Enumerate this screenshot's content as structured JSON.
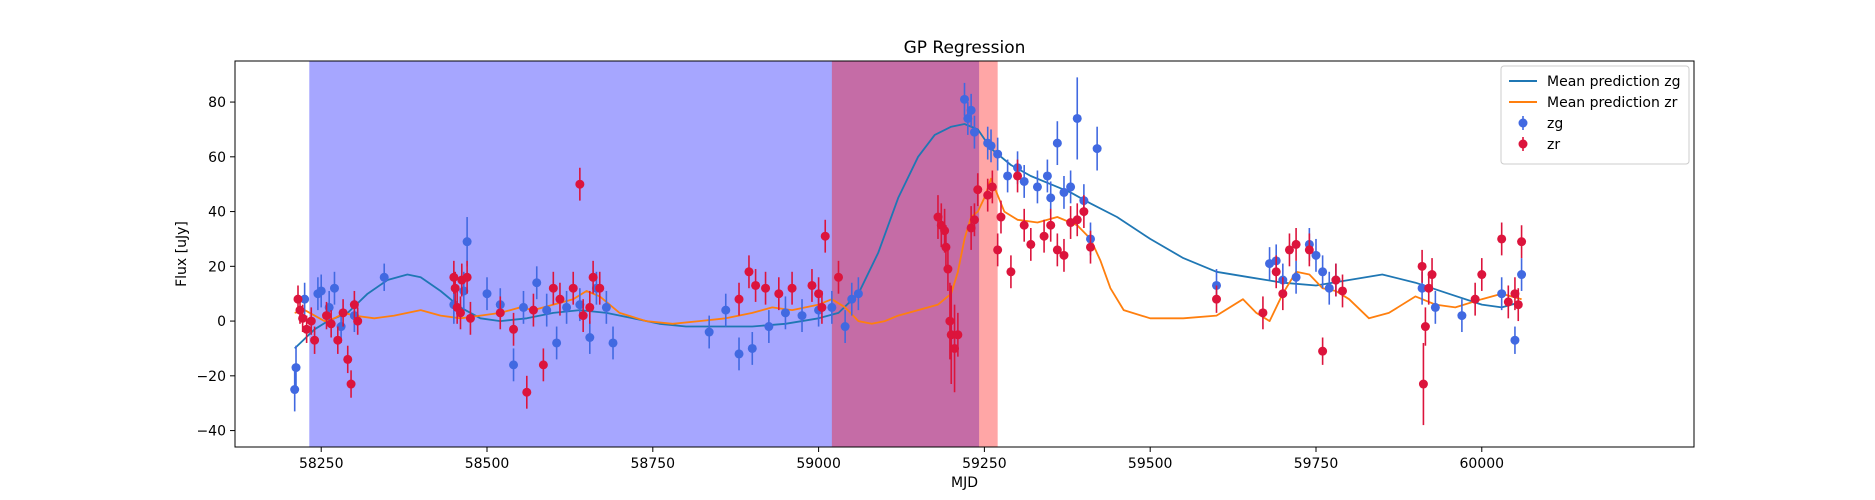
{
  "chart_data": {
    "type": "scatter",
    "title": "GP Regression",
    "xlabel": "MJD",
    "ylabel": "Flux [uJy]",
    "xlim": [
      58120,
      60320
    ],
    "ylim": [
      -46,
      95
    ],
    "xticks": [
      58250,
      58500,
      58750,
      59000,
      59250,
      59500,
      59750,
      60000
    ],
    "yticks": [
      -40,
      -20,
      0,
      20,
      40,
      60,
      80
    ],
    "legend": {
      "position": "top-right",
      "entries": [
        {
          "label": "Mean prediction zg",
          "kind": "line",
          "color": "#1f77b4"
        },
        {
          "label": "Mean prediction zr",
          "kind": "line",
          "color": "#ff7f0e"
        },
        {
          "label": "zg",
          "kind": "errorbar",
          "color": "#4169e1"
        },
        {
          "label": "zr",
          "kind": "errorbar",
          "color": "#dc143c"
        }
      ]
    },
    "spans": [
      {
        "x0": 58232,
        "x1": 59242,
        "color": "#0000ff",
        "alpha": 0.35
      },
      {
        "x0": 59020,
        "x1": 59270,
        "color": "#ff0000",
        "alpha": 0.35
      }
    ],
    "series": [
      {
        "name": "Mean prediction zg",
        "kind": "line",
        "color": "#1f77b4",
        "x": [
          58210,
          58240,
          58260,
          58290,
          58320,
          58350,
          58380,
          58400,
          58430,
          58460,
          58490,
          58520,
          58560,
          58600,
          58640,
          58680,
          58720,
          58760,
          58800,
          58850,
          58900,
          58950,
          59000,
          59030,
          59060,
          59090,
          59120,
          59150,
          59175,
          59200,
          59220,
          59240,
          59260,
          59290,
          59320,
          59350,
          59380,
          59410,
          59450,
          59500,
          59550,
          59600,
          59650,
          59700,
          59750,
          59800,
          59850,
          59900,
          59950,
          60000,
          60030,
          60060
        ],
        "y": [
          -10,
          -3,
          0,
          3,
          10,
          15,
          17,
          16,
          11,
          5,
          1,
          0,
          1,
          3,
          4,
          3,
          1,
          -1,
          -2,
          -2,
          -2,
          -1,
          1,
          3,
          10,
          25,
          45,
          60,
          68,
          71,
          72,
          70,
          63,
          57,
          53,
          50,
          47,
          43,
          38,
          30,
          23,
          18,
          16,
          14,
          13,
          15,
          17,
          14,
          10,
          6,
          5,
          7
        ]
      },
      {
        "name": "Mean prediction zr",
        "kind": "line",
        "color": "#ff7f0e",
        "x": [
          58210,
          58225,
          58240,
          58255,
          58270,
          58285,
          58300,
          58330,
          58360,
          58380,
          58400,
          58430,
          58460,
          58490,
          58520,
          58550,
          58570,
          58600,
          58630,
          58650,
          58670,
          58700,
          58740,
          58780,
          58820,
          58860,
          58900,
          58930,
          58960,
          59000,
          59020,
          59040,
          59060,
          59080,
          59100,
          59120,
          59150,
          59180,
          59200,
          59210,
          59220,
          59230,
          59240,
          59250,
          59260,
          59280,
          59300,
          59330,
          59360,
          59390,
          59410,
          59425,
          59440,
          59460,
          59500,
          59550,
          59600,
          59640,
          59660,
          59680,
          59700,
          59720,
          59740,
          59760,
          59780,
          59800,
          59830,
          59860,
          59900,
          59930,
          59960,
          60000,
          60030,
          60060
        ],
        "y": [
          3,
          4,
          2,
          0,
          1,
          3,
          2,
          1,
          2,
          3,
          4,
          2,
          1,
          2,
          3,
          5,
          4,
          6,
          8,
          11,
          9,
          3,
          0,
          -1,
          0,
          1,
          3,
          5,
          4,
          6,
          8,
          5,
          0,
          -1,
          0,
          2,
          4,
          6,
          10,
          18,
          30,
          38,
          40,
          45,
          52,
          40,
          37,
          36,
          38,
          35,
          30,
          22,
          12,
          4,
          1,
          1,
          2,
          8,
          3,
          0,
          10,
          18,
          17,
          12,
          11,
          8,
          1,
          3,
          9,
          6,
          5,
          8,
          10,
          8
        ]
      },
      {
        "name": "zg",
        "kind": "errorbar",
        "color": "#4169e1",
        "x": [
          58210,
          58212,
          58225,
          58245,
          58250,
          58262,
          58270,
          58280,
          58300,
          58345,
          58450,
          58465,
          58470,
          58500,
          58520,
          58540,
          58555,
          58575,
          58590,
          58605,
          58620,
          58640,
          58655,
          58665,
          58680,
          58690,
          58835,
          58860,
          58880,
          58900,
          58925,
          58950,
          58975,
          59000,
          59020,
          59040,
          59050,
          59060,
          59220,
          59225,
          59230,
          59235,
          59255,
          59260,
          59270,
          59285,
          59300,
          59310,
          59330,
          59345,
          59350,
          59360,
          59370,
          59380,
          59390,
          59400,
          59410,
          59420,
          59600,
          59680,
          59690,
          59700,
          59720,
          59740,
          59750,
          59760,
          59770,
          59780,
          59910,
          59930,
          59970,
          60030,
          60050,
          60060
        ],
        "y": [
          -25,
          -17,
          8,
          10,
          11,
          5,
          12,
          -2,
          2,
          16,
          6,
          11,
          29,
          10,
          6,
          -16,
          5,
          14,
          4,
          -8,
          5,
          6,
          -6,
          12,
          5,
          -8,
          -4,
          4,
          -12,
          -10,
          -2,
          3,
          2,
          4,
          5,
          -2,
          8,
          10,
          81,
          74,
          77,
          69,
          65,
          64,
          61,
          53,
          56,
          51,
          49,
          53,
          45,
          65,
          47,
          49,
          74,
          44,
          30,
          63,
          13,
          21,
          22,
          15,
          16,
          28,
          24,
          18,
          12,
          15,
          12,
          5,
          2,
          10,
          -7,
          17
        ],
        "yerr": [
          8,
          8,
          6,
          6,
          6,
          6,
          6,
          6,
          6,
          5,
          7,
          7,
          9,
          6,
          6,
          6,
          6,
          6,
          6,
          6,
          6,
          6,
          6,
          6,
          6,
          6,
          6,
          6,
          6,
          6,
          6,
          6,
          6,
          6,
          6,
          6,
          6,
          6,
          6,
          6,
          6,
          6,
          6,
          6,
          6,
          6,
          6,
          6,
          6,
          6,
          6,
          8,
          6,
          6,
          15,
          6,
          6,
          8,
          6,
          6,
          6,
          6,
          6,
          6,
          6,
          6,
          6,
          6,
          6,
          6,
          6,
          6,
          5,
          6
        ]
      },
      {
        "name": "zr",
        "kind": "errorbar",
        "color": "#dc143c",
        "x": [
          58215,
          58218,
          58222,
          58228,
          58235,
          58240,
          58258,
          58265,
          58275,
          58283,
          58290,
          58295,
          58300,
          58305,
          58450,
          58452,
          58455,
          58460,
          58462,
          58470,
          58475,
          58520,
          58540,
          58560,
          58570,
          58585,
          58600,
          58610,
          58630,
          58640,
          58645,
          58655,
          58660,
          58670,
          58880,
          58895,
          58905,
          58920,
          58940,
          58960,
          58990,
          59000,
          59005,
          59010,
          59030,
          59180,
          59185,
          59190,
          59192,
          59195,
          59198,
          59200,
          59205,
          59210,
          59230,
          59235,
          59240,
          59255,
          59262,
          59270,
          59275,
          59290,
          59300,
          59310,
          59320,
          59340,
          59350,
          59360,
          59370,
          59380,
          59390,
          59400,
          59410,
          59600,
          59670,
          59690,
          59700,
          59710,
          59720,
          59740,
          59760,
          59780,
          59790,
          59910,
          59912,
          59915,
          59920,
          59925,
          59990,
          60000,
          60030,
          60040,
          60050,
          60055,
          60060
        ],
        "y": [
          8,
          4,
          1,
          -3,
          0,
          -7,
          2,
          -1,
          -7,
          3,
          -14,
          -23,
          6,
          0,
          16,
          12,
          5,
          3,
          15,
          16,
          1,
          3,
          -3,
          -26,
          4,
          -16,
          12,
          8,
          12,
          50,
          2,
          5,
          16,
          12,
          8,
          18,
          13,
          12,
          10,
          12,
          13,
          10,
          5,
          31,
          16,
          38,
          35,
          33,
          27,
          19,
          0,
          -5,
          -10,
          -5,
          34,
          37,
          48,
          46,
          49,
          26,
          38,
          18,
          53,
          35,
          28,
          31,
          35,
          26,
          24,
          36,
          37,
          40,
          27,
          8,
          3,
          18,
          10,
          26,
          28,
          26,
          -11,
          15,
          11,
          20,
          -23,
          -2,
          12,
          17,
          8,
          17,
          30,
          7,
          10,
          6,
          29
        ],
        "yerr": [
          5,
          5,
          5,
          5,
          5,
          5,
          5,
          5,
          5,
          5,
          5,
          5,
          5,
          5,
          6,
          6,
          6,
          6,
          6,
          6,
          6,
          6,
          6,
          6,
          6,
          6,
          6,
          6,
          6,
          6,
          6,
          6,
          6,
          6,
          6,
          6,
          6,
          6,
          6,
          6,
          6,
          6,
          6,
          6,
          6,
          8,
          8,
          8,
          8,
          8,
          14,
          18,
          16,
          8,
          8,
          6,
          6,
          6,
          6,
          6,
          6,
          6,
          6,
          6,
          6,
          6,
          6,
          6,
          6,
          6,
          6,
          6,
          6,
          5,
          6,
          6,
          6,
          6,
          6,
          6,
          5,
          6,
          6,
          6,
          15,
          7,
          6,
          6,
          6,
          6,
          6,
          6,
          6,
          6,
          6
        ]
      }
    ]
  }
}
